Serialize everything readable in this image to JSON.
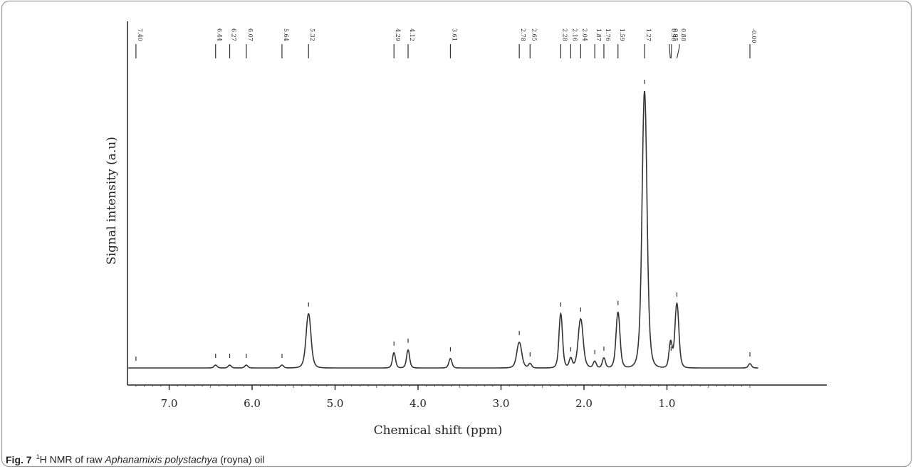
{
  "caption": {
    "fig_label": "Fig. 7",
    "sup": "1",
    "text_before": "H NMR of raw ",
    "species": "Aphanamixis polystachya",
    "text_after": " (royna) oil"
  },
  "chart_data": {
    "type": "line",
    "title": "",
    "xlabel": "Chemical shift (ppm)",
    "ylabel": "Signal intensity (a.u)",
    "xlim": [
      7.6,
      -0.1
    ],
    "x_reversed": true,
    "ylim": [
      0,
      100
    ],
    "grid": false,
    "x_ticks": [
      {
        "value": 7.0,
        "label": "7.0"
      },
      {
        "value": 6.0,
        "label": "6.0"
      },
      {
        "value": 5.0,
        "label": "5.0"
      },
      {
        "value": 4.0,
        "label": "4.0"
      },
      {
        "value": 3.0,
        "label": "3.0"
      },
      {
        "value": 2.0,
        "label": "2.0"
      },
      {
        "value": 1.0,
        "label": "1.0"
      }
    ],
    "peaks": [
      {
        "label": "7.40",
        "shift": 7.4,
        "height": 0.0
      },
      {
        "label": "6.44",
        "shift": 6.44,
        "height": 1.0
      },
      {
        "label": "6.27",
        "shift": 6.27,
        "height": 1.0
      },
      {
        "label": "6.07",
        "shift": 6.07,
        "height": 1.0
      },
      {
        "label": "5.64",
        "shift": 5.64,
        "height": 1.0
      },
      {
        "label": "5.32",
        "shift": 5.32,
        "height": 19.0
      },
      {
        "label": "4.29",
        "shift": 4.29,
        "height": 5.3
      },
      {
        "label": "4.12",
        "shift": 4.12,
        "height": 6.3
      },
      {
        "label": "3.61",
        "shift": 3.61,
        "height": 3.3
      },
      {
        "label": "2.78",
        "shift": 2.78,
        "height": 9.0
      },
      {
        "label": "2.65",
        "shift": 2.65,
        "height": 1.5
      },
      {
        "label": "2.28",
        "shift": 2.28,
        "height": 19.0
      },
      {
        "label": "2.16",
        "shift": 2.16,
        "height": 3.3
      },
      {
        "label": "2.04",
        "shift": 2.04,
        "height": 17.2
      },
      {
        "label": "1.87",
        "shift": 1.87,
        "height": 2.3
      },
      {
        "label": "1.76",
        "shift": 1.76,
        "height": 3.5
      },
      {
        "label": "1.59",
        "shift": 1.59,
        "height": 19.5
      },
      {
        "label": "1.27",
        "shift": 1.27,
        "height": 97.0
      },
      {
        "label": "0.96",
        "shift": 0.96,
        "height": 5.5
      },
      {
        "label": "0.95",
        "shift": 0.95,
        "height": 3.5
      },
      {
        "label": "0.88",
        "shift": 0.88,
        "height": 22.5
      },
      {
        "label": "-0.00",
        "shift": 0.0,
        "height": 1.5
      }
    ]
  }
}
